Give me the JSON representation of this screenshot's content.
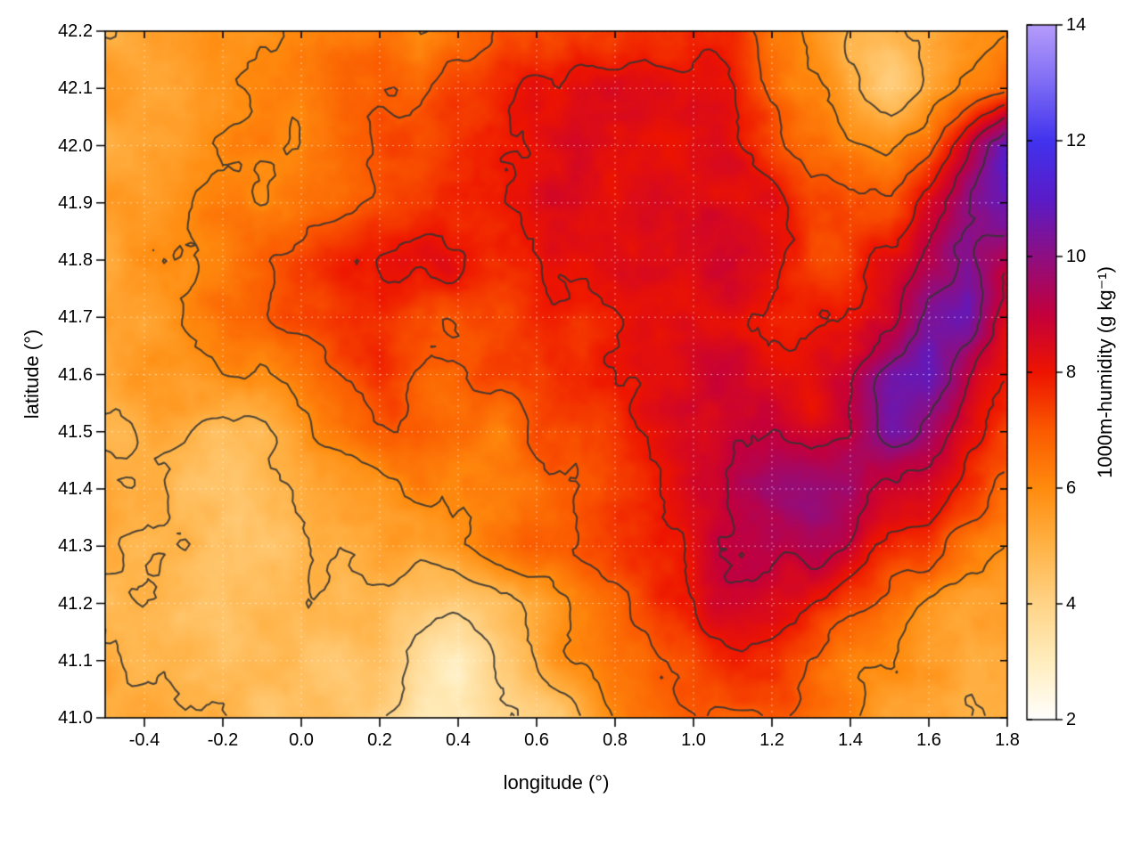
{
  "figure": {
    "background": "#ffffff"
  },
  "chart_data": {
    "type": "heatmap",
    "title": "",
    "xlabel": "longitude (°)",
    "ylabel": "latitude (°)",
    "xlim": [
      -0.5,
      1.8
    ],
    "ylim": [
      41.0,
      42.2
    ],
    "xtick_labels": [
      "-0.4",
      "-0.2",
      "0.0",
      "0.2",
      "0.4",
      "0.6",
      "0.8",
      "1.0",
      "1.2",
      "1.4",
      "1.6",
      "1.8"
    ],
    "xtick_values": [
      -0.4,
      -0.2,
      0.0,
      0.2,
      0.4,
      0.6,
      0.8,
      1.0,
      1.2,
      1.4,
      1.6,
      1.8
    ],
    "ytick_labels": [
      "41.0",
      "41.1",
      "41.2",
      "41.3",
      "41.4",
      "41.5",
      "41.6",
      "41.7",
      "41.8",
      "41.9",
      "42.0",
      "42.1",
      "42.2"
    ],
    "ytick_values": [
      41.0,
      41.1,
      41.2,
      41.3,
      41.4,
      41.5,
      41.6,
      41.7,
      41.8,
      41.9,
      42.0,
      42.1,
      42.2
    ],
    "grid_on": true,
    "contour_levels": [
      4,
      5,
      6,
      7,
      8,
      9,
      10
    ],
    "contour_color": "#333333",
    "colorbar": {
      "label": "1000m-humidity (g kg⁻¹)",
      "range": [
        2,
        14
      ],
      "tick_labels": [
        "2",
        "4",
        "6",
        "8",
        "10",
        "12",
        "14"
      ],
      "tick_values": [
        2,
        4,
        6,
        8,
        10,
        12,
        14
      ],
      "stops": [
        [
          2,
          "#ffffff"
        ],
        [
          3,
          "#ffeebf"
        ],
        [
          4,
          "#ffd488"
        ],
        [
          5,
          "#ffb347"
        ],
        [
          6,
          "#ff8c0f"
        ],
        [
          7,
          "#fb5a00"
        ],
        [
          8,
          "#ee1500"
        ],
        [
          9,
          "#c4003c"
        ],
        [
          10,
          "#8f0f82"
        ],
        [
          11,
          "#5a1cc8"
        ],
        [
          12,
          "#4233ee"
        ],
        [
          13,
          "#7e6cf5"
        ],
        [
          14,
          "#b59cfb"
        ]
      ]
    },
    "grid": {
      "x0": -0.5,
      "x1": 1.8,
      "y0": 41.0,
      "y1": 42.2,
      "ncols": 24,
      "nrows": 13,
      "row_order": "top-to-bottom (first row is y=42.2)",
      "values": [
        [
          5.5,
          5.5,
          5.5,
          5.5,
          5.5,
          6,
          6,
          6.5,
          6,
          6.5,
          7,
          7.5,
          7.5,
          7.5,
          8,
          8,
          7.5,
          6.5,
          6,
          5,
          4.5,
          5,
          5.5,
          6
        ],
        [
          5.5,
          5.5,
          5.5,
          5.5,
          6,
          6,
          6.5,
          7,
          6.5,
          7,
          7.5,
          8,
          8,
          8,
          8,
          8,
          8,
          7,
          6,
          5,
          4.5,
          5,
          6,
          7
        ],
        [
          5.5,
          5.5,
          5.5,
          6,
          6,
          6,
          6.5,
          7,
          7,
          7.5,
          7.5,
          8,
          8.5,
          8,
          8.5,
          8.5,
          8,
          7.5,
          6.5,
          6,
          6,
          7,
          9,
          11
        ],
        [
          5.5,
          5.5,
          6,
          6,
          6,
          6.5,
          7,
          7.5,
          7.5,
          7.5,
          8,
          8.5,
          8.5,
          8,
          8.5,
          8.5,
          8.5,
          8,
          7,
          7,
          7.5,
          8.5,
          10,
          10.5
        ],
        [
          5.5,
          6,
          6,
          6.5,
          7,
          7.5,
          8,
          8,
          8,
          8,
          8,
          8,
          8,
          8,
          8.5,
          8.5,
          8.5,
          8,
          7.5,
          7.5,
          8,
          9,
          10,
          9
        ],
        [
          5.5,
          5.5,
          6,
          6.5,
          7,
          7.5,
          8,
          8,
          7.5,
          7.5,
          7.5,
          7.5,
          7.5,
          8,
          8.5,
          8.5,
          8.5,
          8,
          8,
          8,
          8.5,
          10,
          10.5,
          8.5
        ],
        [
          5,
          5.5,
          5.5,
          6,
          6,
          6.5,
          7,
          7.5,
          7,
          7,
          7,
          7,
          7.5,
          8,
          8.5,
          8.5,
          8.5,
          8.5,
          8,
          8.5,
          10,
          10.5,
          9,
          8
        ],
        [
          5,
          5,
          5,
          4.5,
          4.8,
          5.5,
          6,
          6.5,
          6.5,
          6.5,
          6.5,
          7,
          7,
          7.5,
          8,
          8.5,
          9,
          9,
          8.5,
          9,
          10.5,
          10,
          8.5,
          7.5
        ],
        [
          5.5,
          5,
          4.5,
          4.5,
          4.5,
          5,
          5.5,
          5.5,
          6,
          6,
          6.5,
          6.5,
          7,
          7.5,
          8,
          8.5,
          9,
          9.5,
          10,
          10,
          9,
          8.5,
          7.5,
          7
        ],
        [
          5.5,
          5,
          5,
          4.5,
          4.5,
          5,
          5,
          5.5,
          5.5,
          6,
          6.5,
          7,
          7,
          7.5,
          8,
          8.5,
          9,
          9.5,
          9.5,
          8.5,
          8,
          7.5,
          6.5,
          6
        ],
        [
          5,
          5,
          4.5,
          4.5,
          4.5,
          4.5,
          4.5,
          5,
          4.5,
          4.5,
          5,
          5.5,
          6.5,
          7,
          7.5,
          8,
          8.5,
          8.5,
          8,
          7.5,
          6.5,
          6,
          5.5,
          5.5
        ],
        [
          5.5,
          5,
          5,
          4.5,
          4.5,
          4.5,
          4.5,
          4.5,
          4,
          3.2,
          4,
          5,
          6,
          6.5,
          7,
          7.5,
          8,
          7.5,
          7,
          6.5,
          6,
          5.5,
          5,
          5
        ],
        [
          5.5,
          5.5,
          5,
          5,
          4.5,
          4.5,
          4.5,
          4,
          3.2,
          3.2,
          4,
          4.5,
          5,
          6,
          6.5,
          7,
          7,
          7,
          6.5,
          6,
          5.5,
          5.5,
          5,
          5
        ]
      ]
    }
  }
}
